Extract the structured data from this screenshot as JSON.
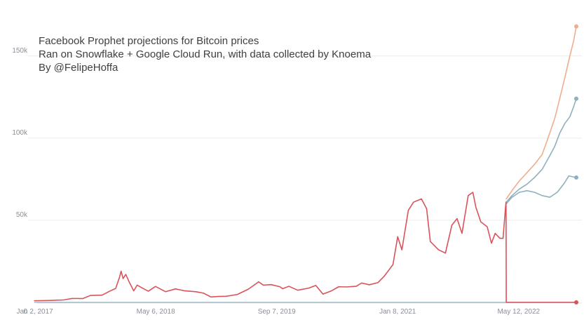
{
  "chart_data": {
    "type": "line",
    "title_lines": [
      "Facebook Prophet projections for Bitcoin prices",
      "Ran on Snowflake + Google Cloud Run, with data collected by Knoema",
      "By @FelipeHoffa"
    ],
    "xlabel": "",
    "ylabel": "",
    "x_range": [
      "2016-12-20",
      "2022-12-31"
    ],
    "ylim": [
      0,
      167000
    ],
    "y_ticks": [
      {
        "value": 0,
        "label": "0"
      },
      {
        "value": 50000,
        "label": "50k"
      },
      {
        "value": 100000,
        "label": "100k"
      },
      {
        "value": 150000,
        "label": "150k"
      }
    ],
    "x_ticks": [
      {
        "date": "2017-01-02",
        "label": "Jan 2, 2017"
      },
      {
        "date": "2018-05-06",
        "label": "May 6, 2018"
      },
      {
        "date": "2019-09-07",
        "label": "Sep 7, 2019"
      },
      {
        "date": "2021-01-08",
        "label": "Jan 8, 2021"
      },
      {
        "date": "2022-05-12",
        "label": "May 12, 2022"
      }
    ],
    "grid": true,
    "legend": "none",
    "series": [
      {
        "key": "actual",
        "color": "#d9535b",
        "points": [
          [
            "2017-01-01",
            1000
          ],
          [
            "2017-03-01",
            1150
          ],
          [
            "2017-05-01",
            1500
          ],
          [
            "2017-06-01",
            2400
          ],
          [
            "2017-07-15",
            2300
          ],
          [
            "2017-08-15",
            4200
          ],
          [
            "2017-10-01",
            4400
          ],
          [
            "2017-11-01",
            6800
          ],
          [
            "2017-11-25",
            8500
          ],
          [
            "2017-12-10",
            15000
          ],
          [
            "2017-12-17",
            19000
          ],
          [
            "2017-12-25",
            14500
          ],
          [
            "2018-01-05",
            17000
          ],
          [
            "2018-01-20",
            12000
          ],
          [
            "2018-02-06",
            7000
          ],
          [
            "2018-02-20",
            10500
          ],
          [
            "2018-03-15",
            8500
          ],
          [
            "2018-04-06",
            6800
          ],
          [
            "2018-05-05",
            9700
          ],
          [
            "2018-06-15",
            6500
          ],
          [
            "2018-07-25",
            8200
          ],
          [
            "2018-09-01",
            7000
          ],
          [
            "2018-10-15",
            6500
          ],
          [
            "2018-11-15",
            5600
          ],
          [
            "2018-12-15",
            3300
          ],
          [
            "2019-01-15",
            3600
          ],
          [
            "2019-02-15",
            3700
          ],
          [
            "2019-04-01",
            4800
          ],
          [
            "2019-05-15",
            8000
          ],
          [
            "2019-06-26",
            12500
          ],
          [
            "2019-07-15",
            10500
          ],
          [
            "2019-08-15",
            10800
          ],
          [
            "2019-09-20",
            9500
          ],
          [
            "2019-10-01",
            8300
          ],
          [
            "2019-10-26",
            9800
          ],
          [
            "2019-12-01",
            7400
          ],
          [
            "2020-01-15",
            8700
          ],
          [
            "2020-02-12",
            10300
          ],
          [
            "2020-03-12",
            5000
          ],
          [
            "2020-04-15",
            7000
          ],
          [
            "2020-05-15",
            9500
          ],
          [
            "2020-06-15",
            9400
          ],
          [
            "2020-07-25",
            9800
          ],
          [
            "2020-08-15",
            11800
          ],
          [
            "2020-09-15",
            10700
          ],
          [
            "2020-10-20",
            12000
          ],
          [
            "2020-11-15",
            16000
          ],
          [
            "2020-12-01",
            19200
          ],
          [
            "2020-12-20",
            23000
          ],
          [
            "2021-01-08",
            40000
          ],
          [
            "2021-01-25",
            32000
          ],
          [
            "2021-02-20",
            56000
          ],
          [
            "2021-03-13",
            61000
          ],
          [
            "2021-04-14",
            63000
          ],
          [
            "2021-05-05",
            57000
          ],
          [
            "2021-05-20",
            37000
          ],
          [
            "2021-06-22",
            32000
          ],
          [
            "2021-07-20",
            30000
          ],
          [
            "2021-08-15",
            47000
          ],
          [
            "2021-09-05",
            51000
          ],
          [
            "2021-09-25",
            42000
          ],
          [
            "2021-10-20",
            65000
          ],
          [
            "2021-11-08",
            67000
          ],
          [
            "2021-11-20",
            58000
          ],
          [
            "2021-12-10",
            49000
          ],
          [
            "2022-01-05",
            46000
          ],
          [
            "2022-01-22",
            36000
          ],
          [
            "2022-02-06",
            42000
          ],
          [
            "2022-02-25",
            39000
          ],
          [
            "2022-03-10",
            39000
          ],
          [
            "2022-03-20",
            58000
          ],
          [
            "2022-03-22",
            61000
          ],
          [
            "2022-03-23",
            0
          ],
          [
            "2022-12-31",
            0
          ]
        ]
      },
      {
        "key": "projection-upper",
        "color": "#f0ad8e",
        "points": [
          [
            "2022-03-23",
            63000
          ],
          [
            "2022-04-15",
            68000
          ],
          [
            "2022-05-15",
            74000
          ],
          [
            "2022-06-15",
            79000
          ],
          [
            "2022-07-15",
            84000
          ],
          [
            "2022-08-15",
            90000
          ],
          [
            "2022-09-10",
            101000
          ],
          [
            "2022-10-05",
            112000
          ],
          [
            "2022-10-25",
            124000
          ],
          [
            "2022-11-15",
            137000
          ],
          [
            "2022-12-05",
            150000
          ],
          [
            "2022-12-20",
            159000
          ],
          [
            "2022-12-31",
            168000
          ]
        ]
      },
      {
        "key": "projection-mid",
        "color": "#8fb0bf",
        "points": [
          [
            "2022-03-23",
            61000
          ],
          [
            "2022-04-15",
            65000
          ],
          [
            "2022-05-15",
            69000
          ],
          [
            "2022-06-15",
            72000
          ],
          [
            "2022-07-15",
            76000
          ],
          [
            "2022-08-15",
            81000
          ],
          [
            "2022-09-10",
            88000
          ],
          [
            "2022-10-05",
            95000
          ],
          [
            "2022-10-25",
            103000
          ],
          [
            "2022-11-15",
            109000
          ],
          [
            "2022-12-05",
            113000
          ],
          [
            "2022-12-20",
            119000
          ],
          [
            "2022-12-31",
            124000
          ]
        ]
      },
      {
        "key": "projection-lower",
        "color": "#8fb0bf",
        "points": [
          [
            "2022-03-23",
            60000
          ],
          [
            "2022-04-15",
            64000
          ],
          [
            "2022-05-15",
            67000
          ],
          [
            "2022-06-15",
            68000
          ],
          [
            "2022-07-15",
            67000
          ],
          [
            "2022-08-15",
            65000
          ],
          [
            "2022-09-15",
            64000
          ],
          [
            "2022-10-15",
            67000
          ],
          [
            "2022-11-10",
            72000
          ],
          [
            "2022-12-01",
            77000
          ],
          [
            "2022-12-15",
            76500
          ],
          [
            "2022-12-31",
            76000
          ]
        ]
      },
      {
        "key": "baseline",
        "color": "#8fb0bf",
        "points": [
          [
            "2017-01-01",
            0
          ],
          [
            "2022-12-31",
            0
          ]
        ]
      }
    ]
  }
}
